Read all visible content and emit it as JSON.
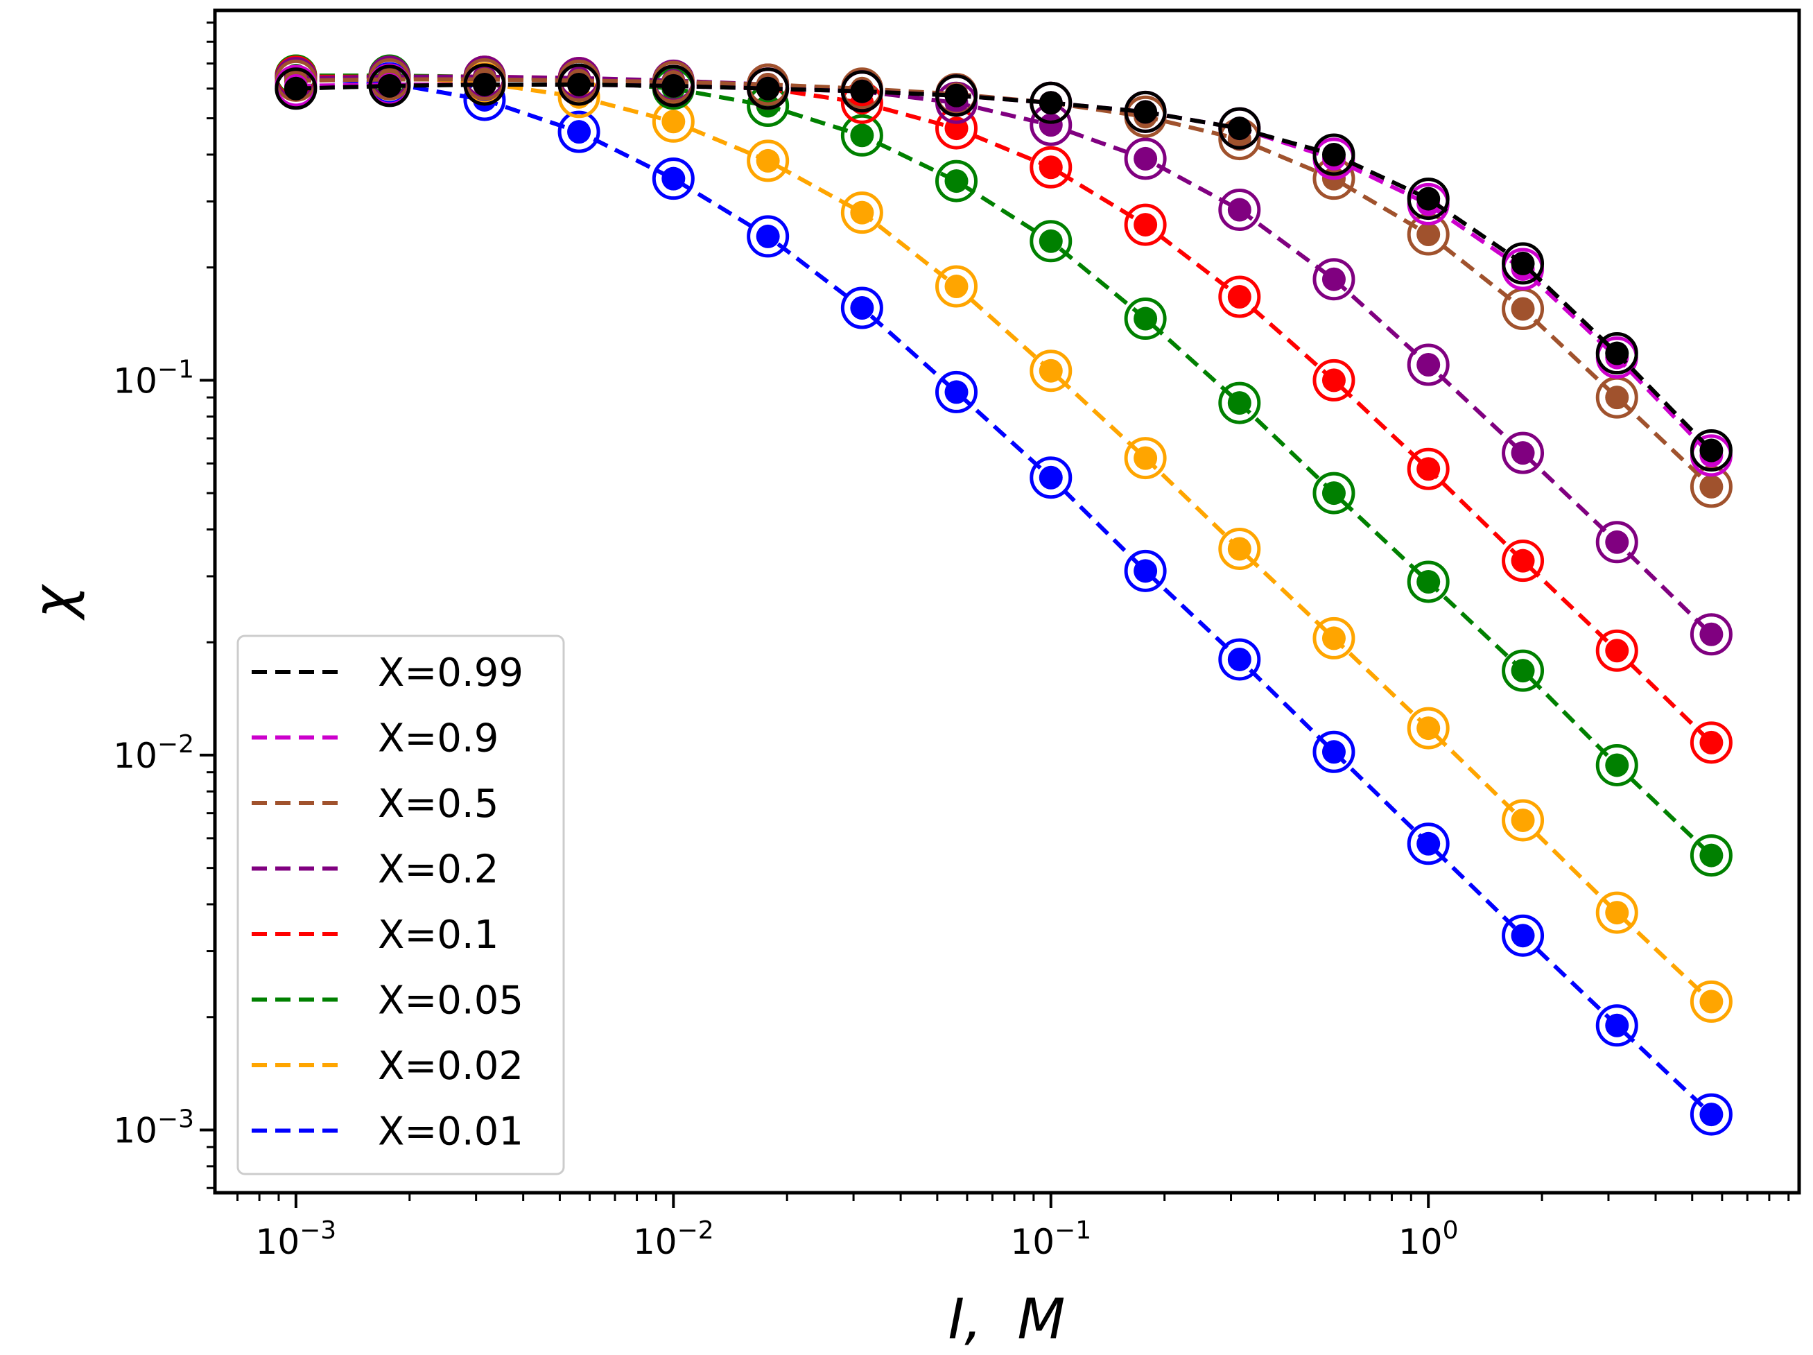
{
  "chart_data": {
    "type": "line",
    "x_scale": "log",
    "y_scale": "log",
    "xlabel": "I,  M",
    "ylabel": "χ",
    "xlim": [
      0.00061,
      9.6
    ],
    "ylim": [
      0.00068,
      0.97
    ],
    "xticks": [
      {
        "value": 0.001,
        "base": "10",
        "exp": "−3"
      },
      {
        "value": 0.01,
        "base": "10",
        "exp": "−2"
      },
      {
        "value": 0.1,
        "base": "10",
        "exp": "−1"
      },
      {
        "value": 1,
        "base": "10",
        "exp": "0"
      }
    ],
    "yticks": [
      {
        "value": 0.001,
        "base": "10",
        "exp": "−3"
      },
      {
        "value": 0.01,
        "base": "10",
        "exp": "−2"
      },
      {
        "value": 0.1,
        "base": "10",
        "exp": "−1"
      }
    ],
    "legend_position": "lower-left",
    "line_style": "dashed",
    "marker_style": "open circle with filled dot",
    "x": [
      0.001,
      0.00177,
      0.00316,
      0.00562,
      0.01,
      0.0178,
      0.0316,
      0.0562,
      0.1,
      0.178,
      0.316,
      0.562,
      1.0,
      1.78,
      3.16,
      5.62
    ],
    "series": [
      {
        "name": "X=0.99",
        "color": "#000000",
        "values": [
          0.6,
          0.61,
          0.615,
          0.615,
          0.61,
          0.6,
          0.59,
          0.575,
          0.55,
          0.52,
          0.47,
          0.4,
          0.305,
          0.205,
          0.118,
          0.065
        ]
      },
      {
        "name": "X=0.9",
        "color": "#cc00cc",
        "values": [
          0.61,
          0.615,
          0.615,
          0.615,
          0.61,
          0.6,
          0.59,
          0.575,
          0.55,
          0.52,
          0.47,
          0.39,
          0.295,
          0.198,
          0.115,
          0.063
        ]
      },
      {
        "name": "X=0.5",
        "color": "#a0522d",
        "values": [
          0.63,
          0.635,
          0.635,
          0.63,
          0.625,
          0.615,
          0.6,
          0.58,
          0.55,
          0.505,
          0.44,
          0.345,
          0.245,
          0.155,
          0.09,
          0.052
        ]
      },
      {
        "name": "X=0.2",
        "color": "#800080",
        "values": [
          0.64,
          0.645,
          0.645,
          0.64,
          0.63,
          0.615,
          0.59,
          0.55,
          0.48,
          0.39,
          0.285,
          0.186,
          0.11,
          0.064,
          0.037,
          0.021
        ]
      },
      {
        "name": "X=0.1",
        "color": "#ff0000",
        "values": [
          0.645,
          0.645,
          0.645,
          0.64,
          0.625,
          0.6,
          0.55,
          0.47,
          0.37,
          0.26,
          0.167,
          0.1,
          0.058,
          0.033,
          0.019,
          0.0108
        ]
      },
      {
        "name": "X=0.05",
        "color": "#008000",
        "values": [
          0.65,
          0.65,
          0.645,
          0.63,
          0.6,
          0.54,
          0.45,
          0.34,
          0.235,
          0.146,
          0.087,
          0.05,
          0.029,
          0.0168,
          0.0094,
          0.0054
        ]
      },
      {
        "name": "X=0.02",
        "color": "#ffa500",
        "values": [
          0.65,
          0.645,
          0.62,
          0.57,
          0.49,
          0.385,
          0.28,
          0.178,
          0.106,
          0.062,
          0.0355,
          0.0205,
          0.0118,
          0.0067,
          0.0038,
          0.0022
        ]
      },
      {
        "name": "X=0.01",
        "color": "#0000ff",
        "values": [
          0.64,
          0.62,
          0.56,
          0.46,
          0.345,
          0.242,
          0.156,
          0.093,
          0.055,
          0.031,
          0.018,
          0.0102,
          0.0058,
          0.0033,
          0.0019,
          0.0011
        ]
      }
    ]
  }
}
